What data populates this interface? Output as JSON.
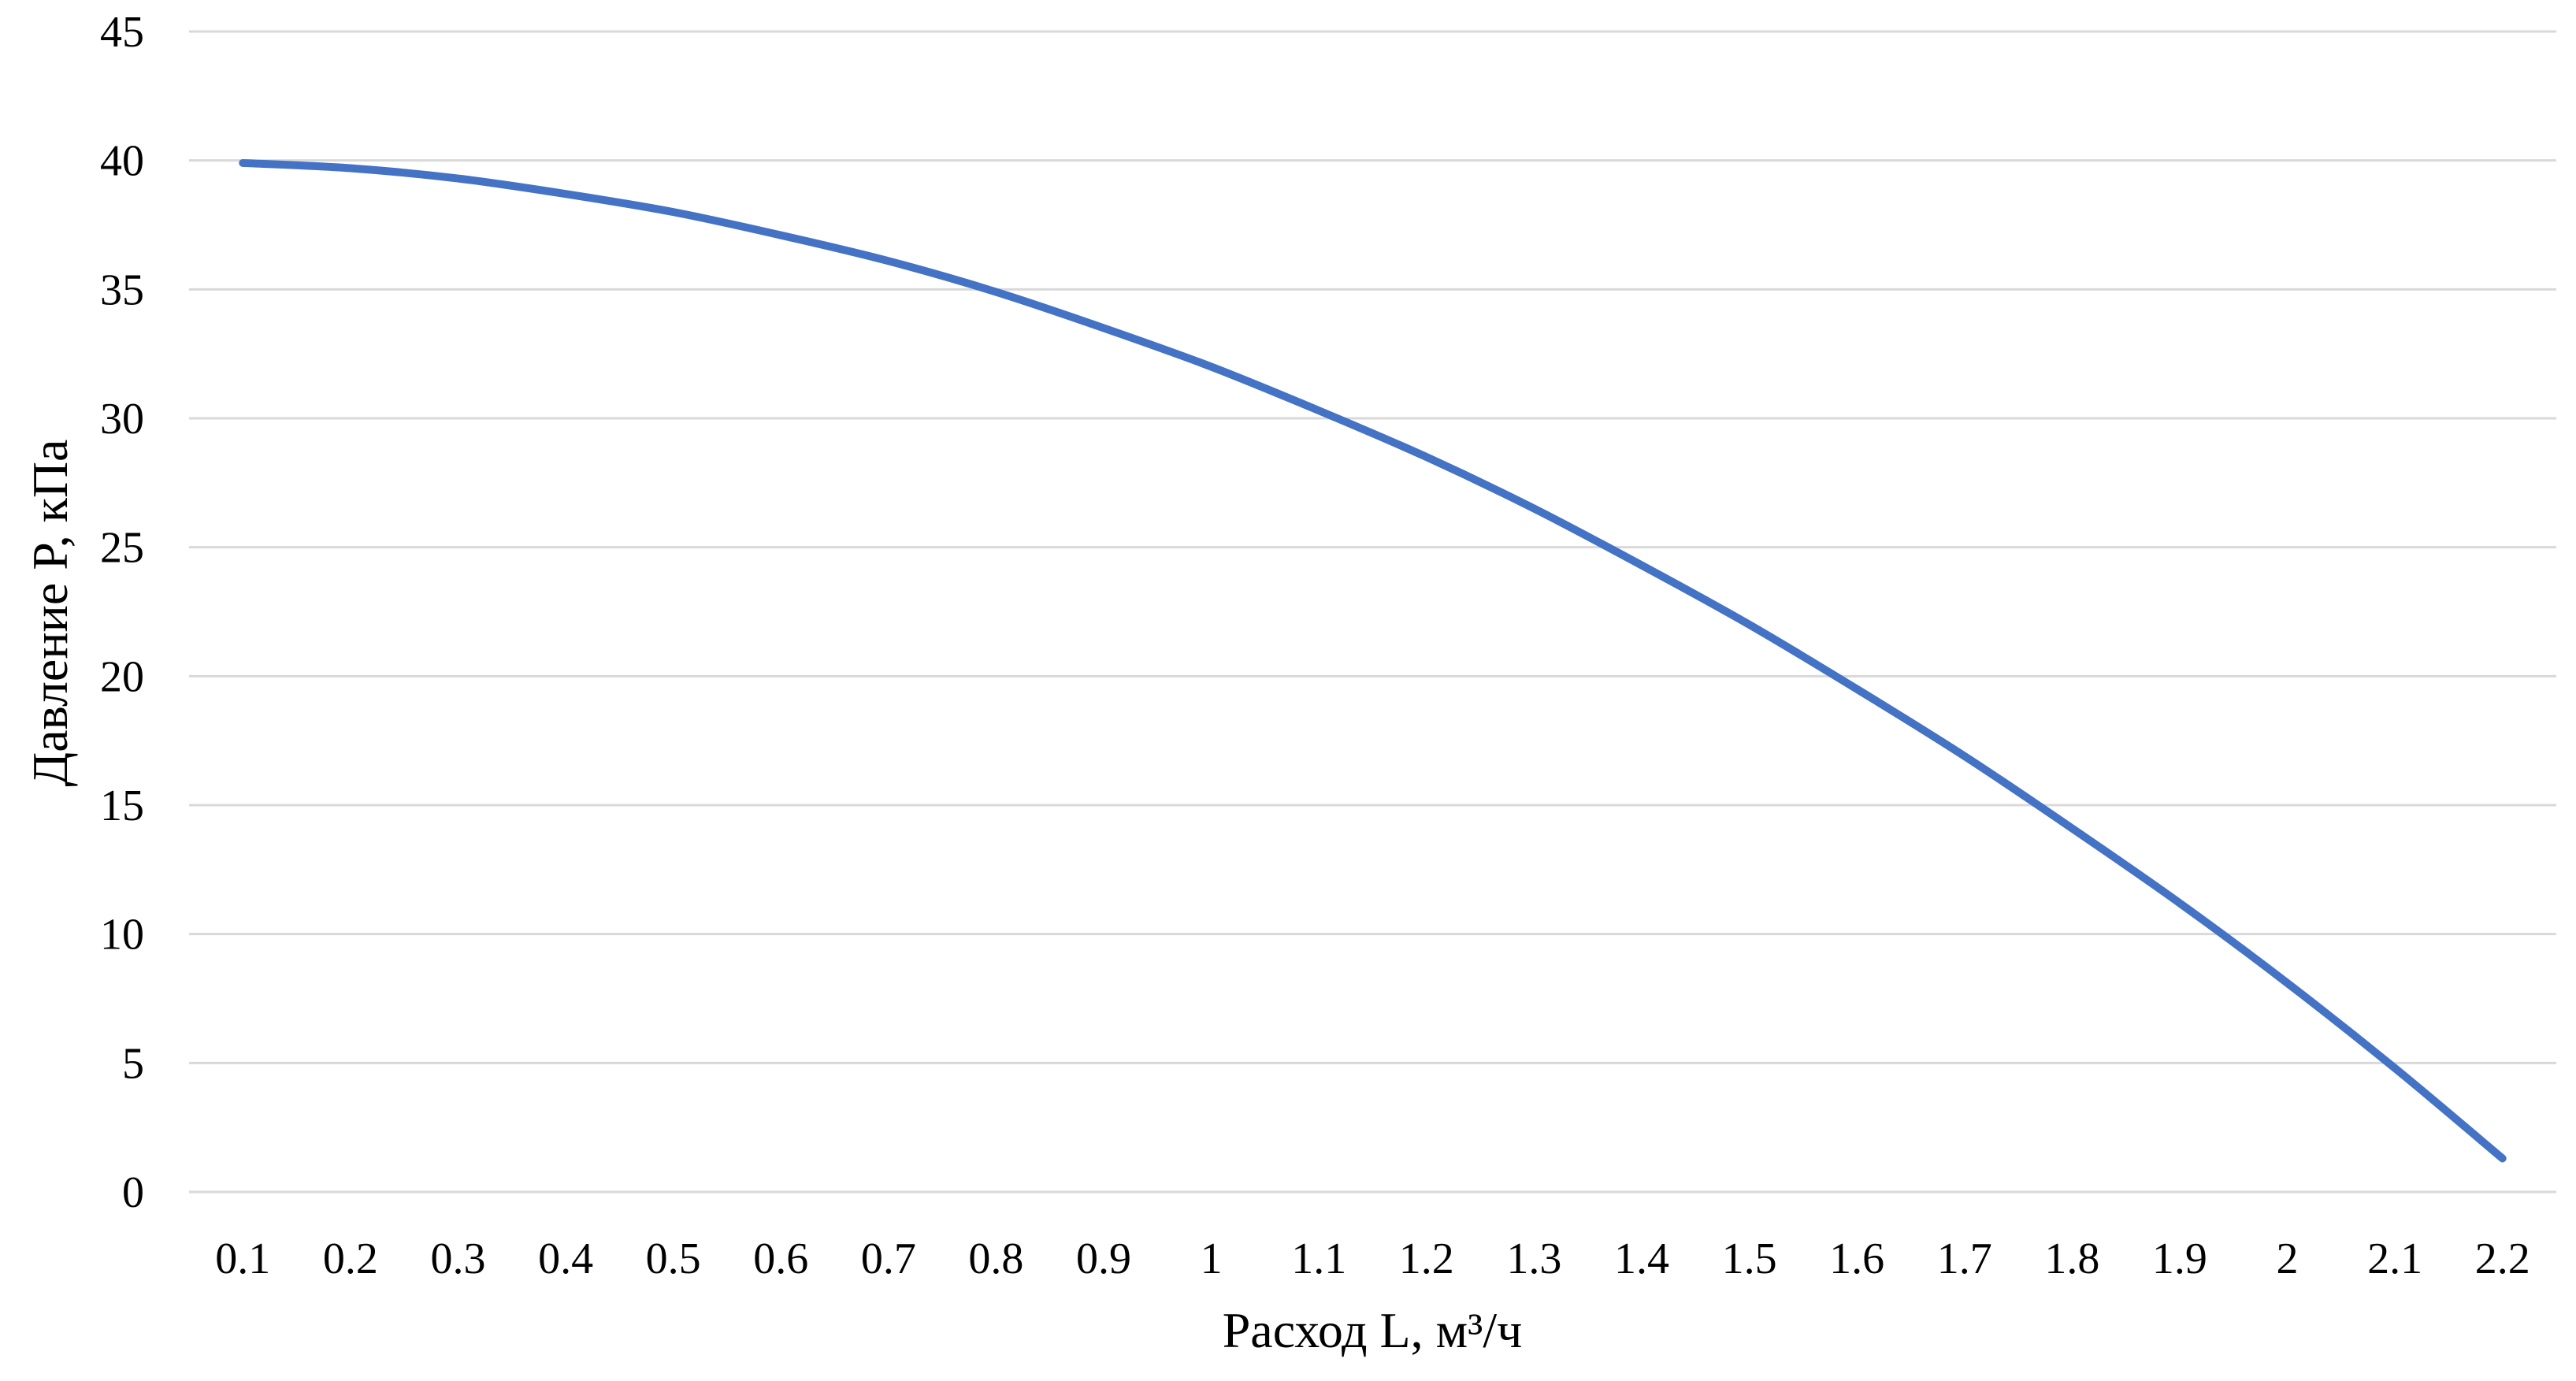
{
  "chart_data": {
    "type": "line",
    "title": "",
    "xlabel": "Расход L, м³/ч",
    "ylabel": "Давление P, кПа",
    "categories": [
      "0.1",
      "0.2",
      "0.3",
      "0.4",
      "0.5",
      "0.6",
      "0.7",
      "0.8",
      "0.9",
      "1",
      "1.1",
      "1.2",
      "1.3",
      "1.4",
      "1.5",
      "1.6",
      "1.7",
      "1.8",
      "1.9",
      "2",
      "2.1",
      "2.2"
    ],
    "yticks": [
      "0",
      "5",
      "10",
      "15",
      "20",
      "25",
      "30",
      "35",
      "40",
      "45"
    ],
    "ylim": [
      0,
      45
    ],
    "grid": true,
    "legend": "none",
    "series": [
      {
        "color": "#4472c4",
        "values": [
          39.9,
          39.7,
          39.3,
          38.7,
          38.0,
          37.1,
          36.1,
          34.9,
          33.5,
          32.0,
          30.3,
          28.5,
          26.5,
          24.3,
          22.0,
          19.5,
          16.9,
          14.1,
          11.2,
          8.1,
          4.8,
          1.3
        ]
      }
    ]
  }
}
